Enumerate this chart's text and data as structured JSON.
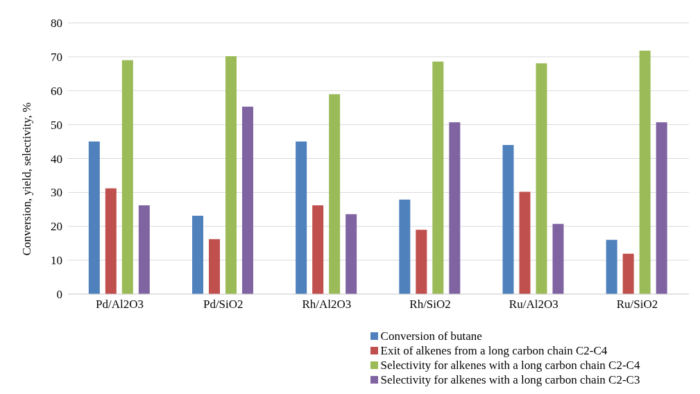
{
  "chart_data": {
    "type": "bar",
    "ylabel": "Conversion, yield, selectivity, %",
    "categories": [
      "Pd/Al2O3",
      "Pd/SiO2",
      "Rh/Al2O3",
      "Rh/SiO2",
      "Ru/Al2O3",
      "Ru/SiO2"
    ],
    "series": [
      {
        "name": "Conversion of butane",
        "color": "#4f81bd",
        "values": [
          45,
          23.1,
          45,
          27.9,
          44,
          16
        ]
      },
      {
        "name": "Exit of alkenes from a long carbon chain C2-C4",
        "color": "#c0504d",
        "values": [
          31.2,
          16.2,
          26.2,
          19,
          30.2,
          11.9
        ]
      },
      {
        "name": "Selectivity for alkenes with a long carbon chain C2-C4",
        "color": "#9bbb59",
        "values": [
          69,
          70.2,
          59,
          68.6,
          68.1,
          71.8
        ]
      },
      {
        "name": "Selectivity for alkenes with a long carbon chain C2-C3",
        "color": "#8064a2",
        "values": [
          26.2,
          55.3,
          23.6,
          50.7,
          20.7,
          50.7
        ]
      }
    ],
    "ylim": [
      0,
      80
    ],
    "yticks": [
      0,
      10,
      20,
      30,
      40,
      50,
      60,
      70,
      80
    ],
    "grid": "y",
    "legend": "bottom"
  }
}
